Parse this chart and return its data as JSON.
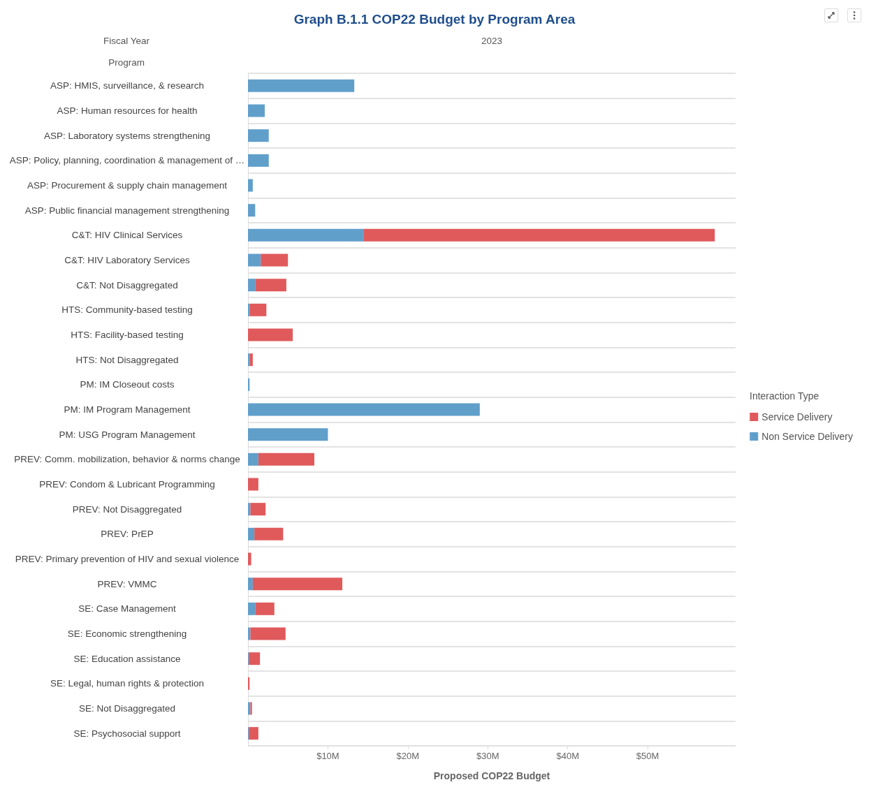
{
  "chart_data": {
    "type": "bar",
    "orientation": "horizontal",
    "stacked": true,
    "title": "Graph B.1.1 COP22 Budget by Program Area",
    "xlabel": "Proposed COP22 Budget",
    "ylabel": "Program",
    "legend_title": "Interaction Type",
    "annotations": [
      "Fiscal Year",
      "2023"
    ],
    "categories": [
      "ASP: HMIS, surveillance, & research",
      "ASP: Human resources for health",
      "ASP: Laboratory systems strengthening",
      "ASP: Policy, planning, coordination & management of …",
      "ASP: Procurement & supply chain management",
      "ASP: Public financial management strengthening",
      "C&T: HIV Clinical Services",
      "C&T: HIV Laboratory Services",
      "C&T: Not Disaggregated",
      "HTS: Community-based testing",
      "HTS: Facility-based testing",
      "HTS: Not Disaggregated",
      "PM: IM Closeout costs",
      "PM: IM Program Management",
      "PM: USG Program Management",
      "PREV: Comm. mobilization, behavior & norms change",
      "PREV: Condom & Lubricant Programming",
      "PREV: Not Disaggregated",
      "PREV: PrEP",
      "PREV: Primary prevention of HIV and sexual violence",
      "PREV: VMMC",
      "SE: Case Management",
      "SE: Economic strengthening",
      "SE: Education assistance",
      "SE: Legal, human rights & protection",
      "SE: Not Disaggregated",
      "SE: Psychosocial support"
    ],
    "series": [
      {
        "name": "Non Service Delivery",
        "color": "#619fcb",
        "values": [
          13.3,
          2.1,
          2.6,
          2.6,
          0.6,
          0.9,
          14.5,
          1.6,
          0.9,
          0.2,
          null,
          0.2,
          0.2,
          29.0,
          10.0,
          1.3,
          null,
          0.3,
          0.8,
          null,
          0.6,
          0.9,
          0.3,
          0.1,
          null,
          0.3,
          0.1
        ]
      },
      {
        "name": "Service Delivery",
        "color": "#e05a5c",
        "values": [
          null,
          null,
          null,
          null,
          null,
          null,
          43.9,
          3.4,
          3.9,
          2.1,
          5.6,
          0.4,
          null,
          null,
          null,
          7.0,
          1.3,
          1.9,
          3.6,
          0.4,
          11.2,
          2.4,
          4.4,
          1.4,
          0.2,
          0.2,
          1.2
        ]
      }
    ],
    "xlim": [
      0,
      61
    ],
    "xticks": [
      {
        "value": 10,
        "label": "$10M"
      },
      {
        "value": 20,
        "label": "$20M"
      },
      {
        "value": 30,
        "label": "$30M"
      },
      {
        "value": 40,
        "label": "$40M"
      },
      {
        "value": 50,
        "label": "$50M"
      }
    ],
    "grid": "y",
    "legend": "right"
  }
}
